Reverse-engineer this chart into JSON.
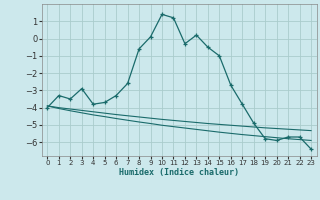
{
  "xlabel": "Humidex (Indice chaleur)",
  "bg_color": "#cce8ec",
  "grid_color": "#aacccc",
  "line_color": "#1a6b6b",
  "x_data": [
    0,
    1,
    2,
    3,
    4,
    5,
    6,
    7,
    8,
    9,
    10,
    11,
    12,
    13,
    14,
    15,
    16,
    17,
    18,
    19,
    20,
    21,
    22,
    23
  ],
  "y_main": [
    -4.0,
    -3.3,
    -3.5,
    -2.9,
    -3.8,
    -3.7,
    -3.3,
    -2.6,
    -0.6,
    0.1,
    1.4,
    1.2,
    -0.3,
    0.2,
    -0.5,
    -1.0,
    -2.7,
    -3.8,
    -4.9,
    -5.8,
    -5.9,
    -5.7,
    -5.7,
    -6.4
  ],
  "y_line1": [
    -3.9,
    -4.05,
    -4.18,
    -4.3,
    -4.42,
    -4.52,
    -4.63,
    -4.73,
    -4.83,
    -4.92,
    -5.02,
    -5.1,
    -5.18,
    -5.26,
    -5.34,
    -5.42,
    -5.49,
    -5.56,
    -5.62,
    -5.68,
    -5.74,
    -5.8,
    -5.85,
    -5.9
  ],
  "y_line2": [
    -3.9,
    -4.0,
    -4.08,
    -4.16,
    -4.24,
    -4.32,
    -4.4,
    -4.47,
    -4.54,
    -4.61,
    -4.68,
    -4.74,
    -4.8,
    -4.86,
    -4.92,
    -4.97,
    -5.02,
    -5.07,
    -5.12,
    -5.17,
    -5.21,
    -5.25,
    -5.29,
    -5.33
  ],
  "ylim": [
    -6.8,
    2.0
  ],
  "xlim": [
    -0.5,
    23.5
  ],
  "yticks": [
    1,
    0,
    -1,
    -2,
    -3,
    -4,
    -5,
    -6
  ],
  "xticks": [
    0,
    1,
    2,
    3,
    4,
    5,
    6,
    7,
    8,
    9,
    10,
    11,
    12,
    13,
    14,
    15,
    16,
    17,
    18,
    19,
    20,
    21,
    22,
    23
  ]
}
